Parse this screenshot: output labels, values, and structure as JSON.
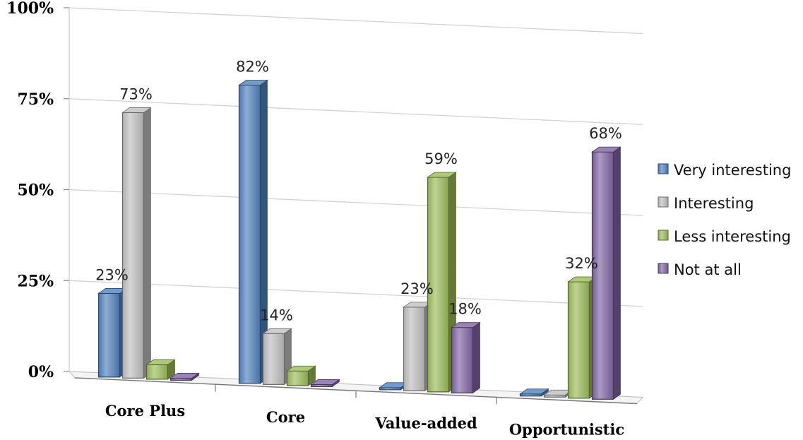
{
  "chart_data": {
    "type": "bar",
    "style": "3d-clustered-column",
    "categories": [
      "Core Plus",
      "Core",
      "Value-added",
      "Opportunistic"
    ],
    "series": [
      {
        "name": "Very interesting",
        "color": "#4f81bd",
        "values": [
          23,
          82,
          0,
          0
        ],
        "labels": [
          "23%",
          "82%",
          "",
          ""
        ]
      },
      {
        "name": "Interesting",
        "color": "#bfbfbf",
        "values": [
          73,
          14,
          23,
          0
        ],
        "labels": [
          "73%",
          "14%",
          "23%",
          ""
        ]
      },
      {
        "name": "Less interesting",
        "color": "#9bbb59",
        "values": [
          4,
          4,
          59,
          32
        ],
        "labels": [
          "",
          "",
          "59%",
          "32%"
        ]
      },
      {
        "name": "Not at all",
        "color": "#8064a2",
        "values": [
          0,
          0,
          18,
          68
        ],
        "labels": [
          "",
          "",
          "18%",
          "68%"
        ]
      }
    ],
    "ylim": [
      0,
      100
    ],
    "yticks": [
      "0%",
      "25%",
      "50%",
      "75%",
      "100%"
    ],
    "title": "",
    "xlabel": "",
    "ylabel": "",
    "grid": true,
    "legend_position": "right"
  }
}
